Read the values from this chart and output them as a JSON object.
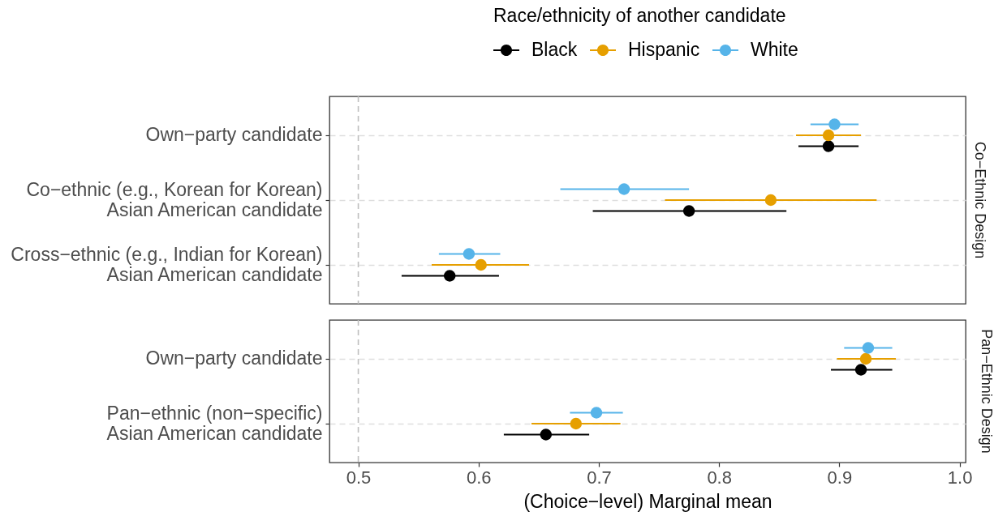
{
  "chart_data": [
    {
      "type": "scatter",
      "orientation": "horizontal",
      "title": "Co−Ethnic Design",
      "legend_title": "Race/ethnicity of another candidate",
      "legend": "top",
      "marker": "circle",
      "grid": "y",
      "tick_labels": "y",
      "categories": [
        "Own−party candidate",
        "Co−ethnic (e.g., Korean for Korean)\nAsian American candidate",
        "Cross−ethnic (e.g., Indian for Korean)\nAsian American candidate"
      ],
      "xlim": [
        0.476,
        1.005
      ],
      "series": [
        {
          "name": "Black",
          "color": "#000000",
          "values": [
            0.891,
            0.775,
            0.576
          ],
          "errors": [
            [
              0.866,
              0.916
            ],
            [
              0.695,
              0.856
            ],
            [
              0.536,
              0.617
            ]
          ]
        },
        {
          "name": "Hispanic",
          "color": "#e69f00",
          "values": [
            0.891,
            0.843,
            0.602
          ],
          "errors": [
            [
              0.864,
              0.918
            ],
            [
              0.755,
              0.931
            ],
            [
              0.561,
              0.642
            ]
          ]
        },
        {
          "name": "White",
          "color": "#56b4e9",
          "values": [
            0.896,
            0.721,
            0.592
          ],
          "errors": [
            [
              0.876,
              0.916
            ],
            [
              0.668,
              0.775
            ],
            [
              0.567,
              0.618
            ]
          ]
        }
      ],
      "ref_lines": [
        {
          "axis": "x",
          "value": 0.5,
          "color": "#bebebe",
          "line_style": "dashed"
        }
      ]
    },
    {
      "type": "scatter",
      "orientation": "horizontal",
      "title": "Pan−Ethnic Design",
      "xlabel": "(Choice−level) Marginal mean",
      "marker": "circle",
      "grid": "y",
      "categories": [
        "Own−party candidate",
        "Pan−ethnic (non−specific)\nAsian American candidate"
      ],
      "xlim": [
        0.476,
        1.005
      ],
      "xticks": [
        0.5,
        0.6,
        0.7,
        0.8,
        0.9,
        {
          "value": 1,
          "label": "1.0"
        }
      ],
      "series": [
        {
          "name": "Black",
          "color": "#000000",
          "values": [
            0.918,
            0.656
          ],
          "errors": [
            [
              0.893,
              0.944
            ],
            [
              0.621,
              0.692
            ]
          ]
        },
        {
          "name": "Hispanic",
          "color": "#e69f00",
          "values": [
            0.922,
            0.681
          ],
          "errors": [
            [
              0.898,
              0.947
            ],
            [
              0.644,
              0.718
            ]
          ]
        },
        {
          "name": "White",
          "color": "#56b4e9",
          "values": [
            0.924,
            0.698
          ],
          "errors": [
            [
              0.904,
              0.944
            ],
            [
              0.676,
              0.72
            ]
          ]
        }
      ],
      "ref_lines": [
        {
          "axis": "x",
          "value": 0.5,
          "color": "#bebebe",
          "line_style": "dashed"
        }
      ]
    }
  ]
}
